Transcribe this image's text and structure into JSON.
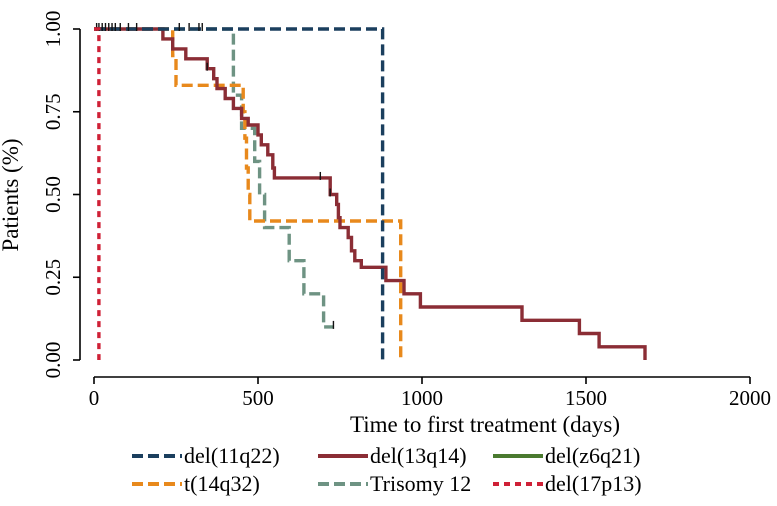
{
  "chart_data": {
    "type": "line",
    "title": "",
    "xlabel": "Time to first treatment (days)",
    "ylabel": "Patients (%)",
    "xlim": [
      0,
      2000
    ],
    "ylim": [
      0,
      1
    ],
    "xticks": [
      0,
      500,
      1000,
      1500,
      2000
    ],
    "xtick_labels": [
      "0",
      "500",
      "1000",
      "1500",
      "2000"
    ],
    "yticks": [
      0,
      0.25,
      0.5,
      0.75,
      1
    ],
    "ytick_labels": [
      "0.00",
      "0.25",
      "0.50",
      "0.75",
      "1.00"
    ],
    "grid": false,
    "legend": "bottom",
    "series": [
      {
        "name": "del(11q22)",
        "color": "#1b3f5e",
        "dash": "dashed",
        "steps": [
          [
            0,
            1.0
          ],
          [
            880,
            1.0
          ],
          [
            880,
            0.0
          ]
        ],
        "censored": [
          8,
          15,
          25,
          35,
          45,
          55,
          65,
          80,
          105,
          130,
          260,
          290,
          320,
          330
        ]
      },
      {
        "name": "del(13q14)",
        "color": "#8b2d35",
        "dash": "solid",
        "steps": [
          [
            0,
            1.0
          ],
          [
            210,
            1.0
          ],
          [
            210,
            0.97
          ],
          [
            240,
            0.97
          ],
          [
            240,
            0.94
          ],
          [
            280,
            0.94
          ],
          [
            280,
            0.91
          ],
          [
            345,
            0.91
          ],
          [
            345,
            0.88
          ],
          [
            365,
            0.88
          ],
          [
            365,
            0.85
          ],
          [
            375,
            0.85
          ],
          [
            375,
            0.82
          ],
          [
            400,
            0.82
          ],
          [
            400,
            0.79
          ],
          [
            425,
            0.79
          ],
          [
            425,
            0.76
          ],
          [
            450,
            0.76
          ],
          [
            450,
            0.73
          ],
          [
            470,
            0.73
          ],
          [
            470,
            0.71
          ],
          [
            500,
            0.71
          ],
          [
            500,
            0.68
          ],
          [
            510,
            0.68
          ],
          [
            510,
            0.65
          ],
          [
            530,
            0.65
          ],
          [
            530,
            0.62
          ],
          [
            545,
            0.62
          ],
          [
            545,
            0.58
          ],
          [
            550,
            0.58
          ],
          [
            550,
            0.55
          ],
          [
            720,
            0.55
          ],
          [
            720,
            0.5
          ],
          [
            740,
            0.5
          ],
          [
            740,
            0.47
          ],
          [
            745,
            0.47
          ],
          [
            745,
            0.43
          ],
          [
            750,
            0.43
          ],
          [
            750,
            0.4
          ],
          [
            775,
            0.4
          ],
          [
            775,
            0.37
          ],
          [
            785,
            0.37
          ],
          [
            785,
            0.33
          ],
          [
            795,
            0.33
          ],
          [
            795,
            0.3
          ],
          [
            815,
            0.3
          ],
          [
            815,
            0.28
          ],
          [
            890,
            0.28
          ],
          [
            890,
            0.24
          ],
          [
            945,
            0.24
          ],
          [
            945,
            0.2
          ],
          [
            995,
            0.2
          ],
          [
            995,
            0.16
          ],
          [
            1305,
            0.16
          ],
          [
            1305,
            0.12
          ],
          [
            1480,
            0.12
          ],
          [
            1480,
            0.08
          ],
          [
            1540,
            0.08
          ],
          [
            1540,
            0.04
          ],
          [
            1680,
            0.04
          ],
          [
            1680,
            0.0
          ]
        ],
        "censored": [
          345,
          690,
          720
        ]
      },
      {
        "name": "del(z6q21)",
        "color": "#4a7a2f",
        "dash": "solid",
        "steps": [],
        "censored": []
      },
      {
        "name": "t(14q32)",
        "color": "#e8891c",
        "dash": "dashed",
        "steps": [
          [
            0,
            1.0
          ],
          [
            240,
            1.0
          ],
          [
            240,
            0.92
          ],
          [
            250,
            0.92
          ],
          [
            250,
            0.83
          ],
          [
            455,
            0.83
          ],
          [
            455,
            0.75
          ],
          [
            460,
            0.75
          ],
          [
            460,
            0.67
          ],
          [
            465,
            0.67
          ],
          [
            465,
            0.58
          ],
          [
            470,
            0.58
          ],
          [
            470,
            0.5
          ],
          [
            475,
            0.5
          ],
          [
            475,
            0.42
          ],
          [
            935,
            0.42
          ],
          [
            935,
            0.0
          ]
        ],
        "censored": []
      },
      {
        "name": "Trisomy 12",
        "color": "#6e9383",
        "dash": "dashed",
        "steps": [
          [
            0,
            1.0
          ],
          [
            425,
            1.0
          ],
          [
            425,
            0.8
          ],
          [
            450,
            0.8
          ],
          [
            450,
            0.7
          ],
          [
            490,
            0.7
          ],
          [
            490,
            0.6
          ],
          [
            505,
            0.6
          ],
          [
            505,
            0.5
          ],
          [
            520,
            0.5
          ],
          [
            520,
            0.4
          ],
          [
            595,
            0.4
          ],
          [
            595,
            0.3
          ],
          [
            640,
            0.3
          ],
          [
            640,
            0.2
          ],
          [
            700,
            0.2
          ],
          [
            700,
            0.1
          ],
          [
            730,
            0.1
          ]
        ],
        "censored": [
          730
        ]
      },
      {
        "name": "del(17p13)",
        "color": "#cf2036",
        "dash": "dotted",
        "steps": [
          [
            0,
            1.0
          ],
          [
            15,
            1.0
          ],
          [
            15,
            0.0
          ]
        ],
        "censored": []
      }
    ]
  }
}
